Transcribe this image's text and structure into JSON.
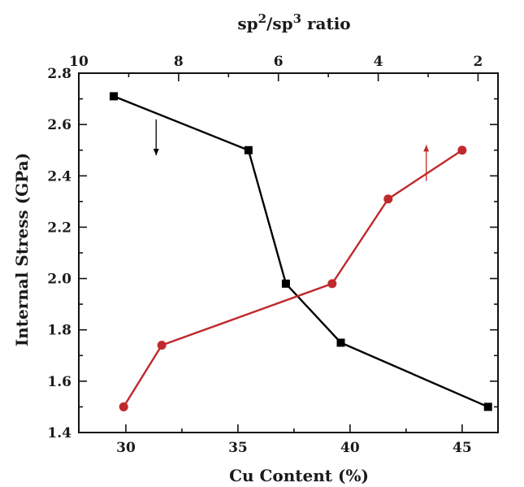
{
  "chart_data": {
    "type": "line",
    "xlabel": "Cu Content (%)",
    "ylabel": "Internal Stress (GPa)",
    "x2label_parts": [
      "sp",
      "2",
      "/sp",
      "3",
      " ratio"
    ],
    "xlim": [
      27.9,
      46.6
    ],
    "ylim": [
      1.4,
      2.8
    ],
    "x2lim": [
      10,
      1.6
    ],
    "xticks": [
      30,
      35,
      40,
      45
    ],
    "yticks": [
      1.4,
      1.6,
      1.8,
      2.0,
      2.2,
      2.4,
      2.6,
      2.8
    ],
    "x2ticks": [
      10,
      8,
      6,
      4,
      2
    ],
    "series": [
      {
        "axis": "top",
        "color": "#000000",
        "marker": "square",
        "x": [
          9.3,
          6.6,
          5.85,
          4.75,
          1.8
        ],
        "y": [
          2.71,
          2.5,
          1.98,
          1.75,
          1.5
        ],
        "arrow": {
          "x": 8.45,
          "y_from": 2.62,
          "y_to": 2.48
        }
      },
      {
        "axis": "bottom",
        "color": "#c0292b",
        "marker": "circle",
        "x": [
          29.9,
          31.6,
          39.2,
          41.7,
          45.0
        ],
        "y": [
          1.5,
          1.74,
          1.98,
          2.31,
          2.5
        ],
        "arrow": {
          "x": 43.4,
          "y_from": 2.38,
          "y_to": 2.52
        }
      }
    ]
  }
}
